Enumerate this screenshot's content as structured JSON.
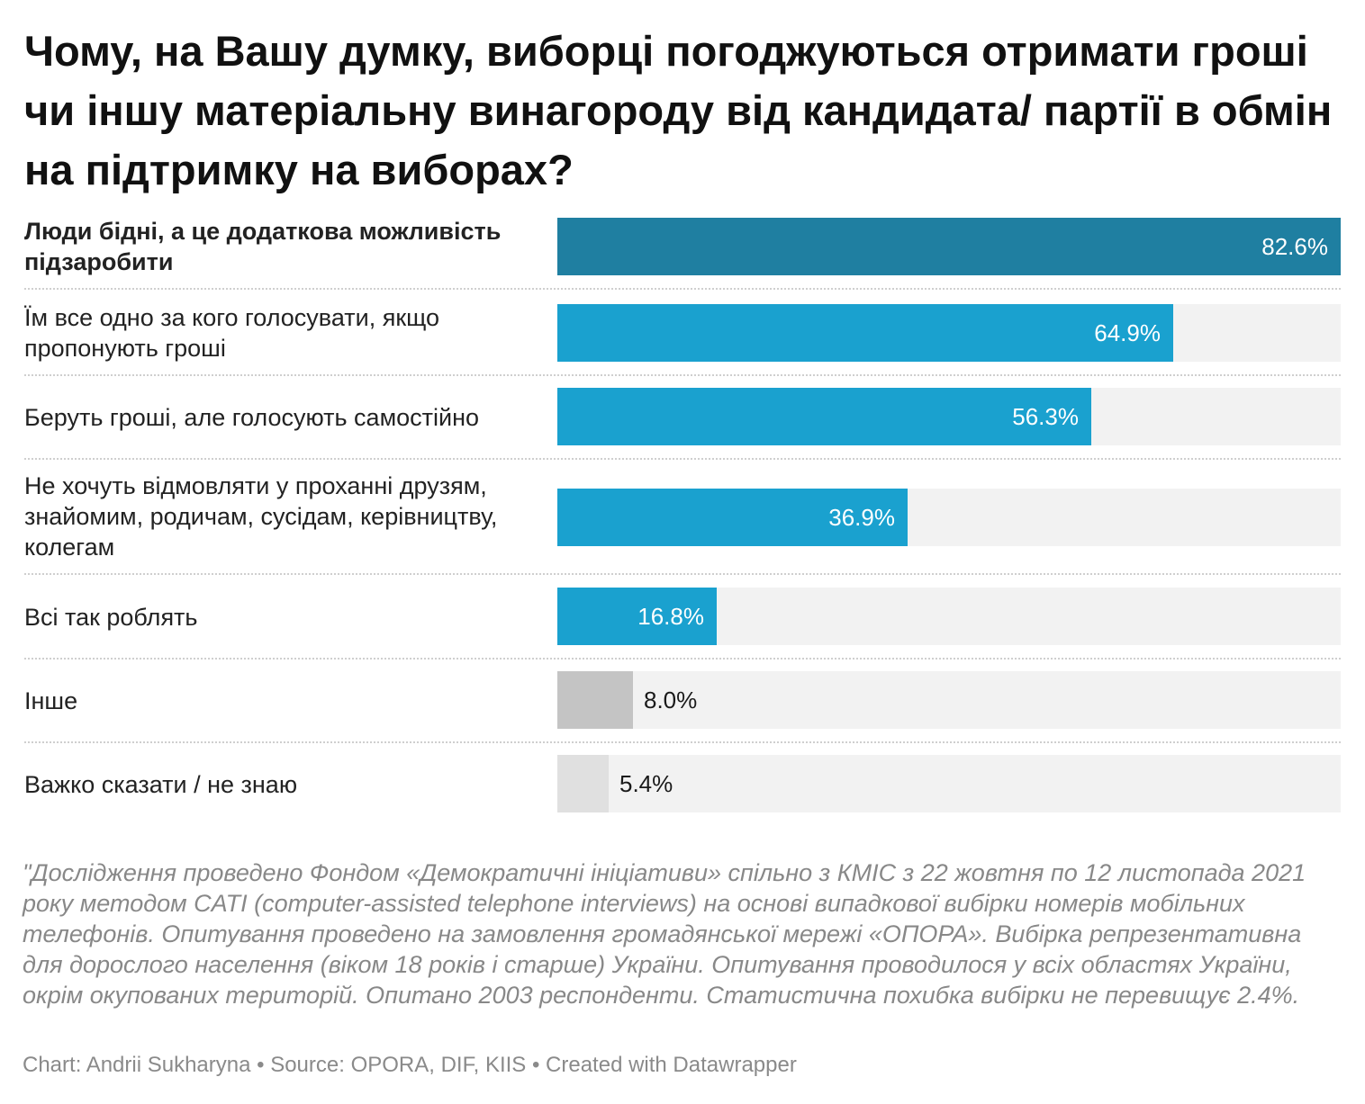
{
  "chart_data": {
    "type": "bar",
    "orientation": "horizontal",
    "title": "Чому, на Вашу думку, виборці погоджуються отримати гроші чи іншу матеріальну винагороду від кандидата/ партії в обмін на підтримку на виборах?",
    "xlabel": "",
    "ylabel": "",
    "xlim": [
      0,
      82.6
    ],
    "unit": "%",
    "grid": false,
    "categories": [
      "Люди бідні, а це додаткова можливість підзаробити",
      "Їм все одно за кого голосувати, якщо пропонують гроші",
      "Беруть гроші, але голосують самостійно",
      "Не хочуть відмовляти у проханні друзям, знайомим, родичам, сусідам, керівництву, колегам",
      "Всі так роблять",
      "Інше",
      "Важко сказати / не знаю"
    ],
    "values": [
      82.6,
      64.9,
      56.3,
      36.9,
      16.8,
      8.0,
      5.4
    ],
    "value_labels": [
      "82.6%",
      "64.9%",
      "56.3%",
      "36.9%",
      "16.8%",
      "8.0%",
      "5.4%"
    ],
    "bar_colors": [
      "#1f7fa1",
      "#1aa1cf",
      "#1aa1cf",
      "#1aa1cf",
      "#1aa1cf",
      "#c4c4c4",
      "#e0e0e0"
    ]
  },
  "notes": "\"Дослідження проведено Фондом «Демократичні ініціативи» спільно з КМІС з 22 жовтня по 12 листопада 2021 року методом CATI (computer-assisted telephone interviews) на основі випадкової вибірки номерів мобільних телефонів. Опитування проведено на замовлення громадянської мережі «ОПОРА». Вибірка репрезентативна для дорослого населення (віком 18 років і старше) України. Опитування проводилося у всіх областях України, окрім окупованих територій. Опитано 2003 респонденти. Статистична похибка вибірки не перевищує 2.4%.",
  "footer": "Chart: Andrii Sukharyna • Source: OPORA, DIF, KIIS • Created with Datawrapper"
}
